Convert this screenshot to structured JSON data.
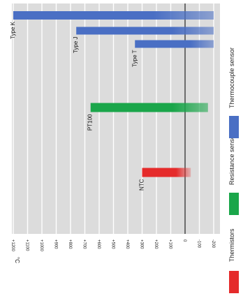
{
  "chart_data": {
    "type": "bar",
    "orientation": "rotated",
    "unit_label": "°C",
    "axis_ticks": [
      "+1200",
      "+1100",
      "+1000",
      "+900",
      "+800",
      "+700",
      "+600",
      "+500",
      "+400",
      "+300",
      "+200",
      "+100",
      "0",
      "-100",
      "-200"
    ],
    "axis_range": [
      -200,
      1250
    ],
    "colors": {
      "thermistors": "#e52b2b",
      "resistance": "#1aa64a",
      "thermocouple": "#4a6fc4",
      "plot_bg": "#dcdcdc"
    },
    "bars": [
      {
        "label": "Type K",
        "group": "thermocouple",
        "min": -200,
        "max": 1200
      },
      {
        "label": "Type J",
        "group": "thermocouple",
        "min": -200,
        "max": 760
      },
      {
        "label": "Type T",
        "group": "thermocouple",
        "min": -200,
        "max": 350
      },
      {
        "label": "PT100",
        "group": "resistance",
        "min": -160,
        "max": 660
      },
      {
        "label": "NTC",
        "group": "thermistors",
        "min": -40,
        "max": 300
      }
    ],
    "legend": [
      {
        "name": "Thermistors",
        "group": "thermistors"
      },
      {
        "name": "Resistance sensor",
        "group": "resistance"
      },
      {
        "name": "Thermocouple sensor",
        "group": "thermocouple"
      }
    ],
    "grid": true,
    "legend_position": "right"
  }
}
